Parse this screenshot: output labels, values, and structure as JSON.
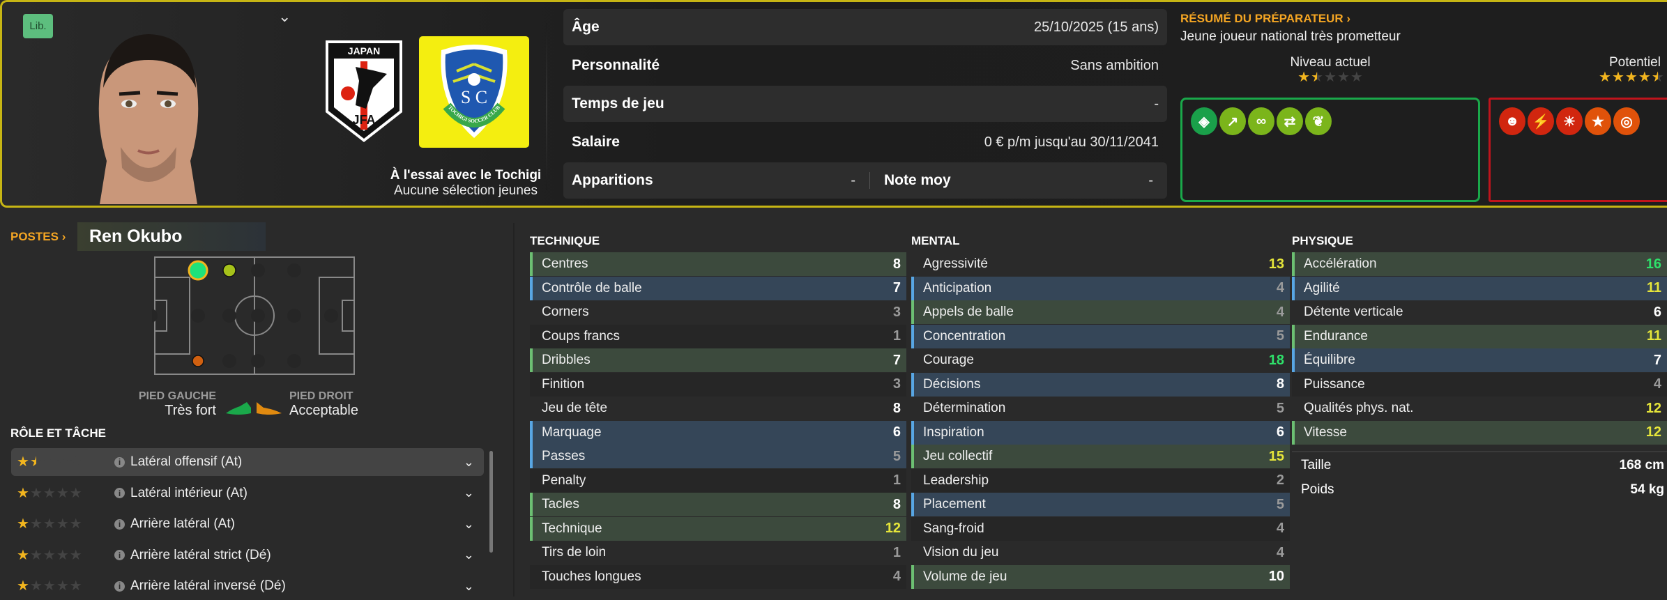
{
  "header": {
    "position_badge": "Lib.",
    "nation_badge_text": "JAPAN",
    "nation_badge_sub": "JFA",
    "club_badge_text": "TOCHIGI SOCCER CLUB",
    "club_status": "À l'essai avec le Tochigi",
    "youth_caps": "Aucune sélection jeunes",
    "info": [
      {
        "label": "Âge",
        "value": "25/10/2025 (15 ans)"
      },
      {
        "label": "Personnalité",
        "value": "Sans ambition"
      },
      {
        "label": "Temps de jeu",
        "value": "-"
      },
      {
        "label": "Salaire",
        "value": "0 € p/m jusqu'au 30/11/2041"
      }
    ],
    "apps_label": "Apparitions",
    "apps_value": "-",
    "rating_label": "Note moy",
    "rating_value": "-"
  },
  "coach_report": {
    "title": "RÉSUMÉ DU PRÉPARATEUR",
    "summary": "Jeune joueur national très prometteur",
    "current_label": "Niveau actuel",
    "current_stars": 1.5,
    "potential_label": "Potentiel",
    "potential_stars": 4.5,
    "strengths": [
      {
        "icon": "shield-stripes-icon",
        "glyph": "◈",
        "color": "#1aa04a"
      },
      {
        "icon": "trend-up-icon",
        "glyph": "↗",
        "color": "#7bb51b"
      },
      {
        "icon": "chain-link-icon",
        "glyph": "∞",
        "color": "#7bb51b"
      },
      {
        "icon": "pass-arrows-icon",
        "glyph": "⇄",
        "color": "#7bb51b"
      },
      {
        "icon": "growth-plant-icon",
        "glyph": "❦",
        "color": "#7bb51b"
      }
    ],
    "weaknesses": [
      {
        "icon": "head-mind-icon",
        "glyph": "☻",
        "color": "#d1260f"
      },
      {
        "icon": "broken-link-icon",
        "glyph": "⚡",
        "color": "#d1260f"
      },
      {
        "icon": "lightbulb-icon",
        "glyph": "☀",
        "color": "#d1260f"
      },
      {
        "icon": "star-icon",
        "glyph": "★",
        "color": "#e0520a"
      },
      {
        "icon": "target-icon",
        "glyph": "◎",
        "color": "#e0520a"
      }
    ]
  },
  "positions": {
    "title": "POSTES",
    "player_name": "Ren Okubo",
    "marker_colors": {
      "natural": "#1ee27a",
      "competent": "#a6c21a",
      "unconvincing": "#d06010",
      "ring": "#f2b51e"
    }
  },
  "feet": {
    "left_label": "PIED GAUCHE",
    "left_value": "Très fort",
    "left_color": "#1aa84a",
    "right_label": "PIED DROIT",
    "right_value": "Acceptable",
    "right_color": "#e08a10"
  },
  "roles": {
    "title": "RÔLE ET TÂCHE",
    "items": [
      {
        "label": "Latéral offensif (At)",
        "stars": 1.5
      },
      {
        "label": "Latéral intérieur (At)",
        "stars": 1
      },
      {
        "label": "Arrière latéral (At)",
        "stars": 1
      },
      {
        "label": "Arrière latéral strict (Dé)",
        "stars": 1
      },
      {
        "label": "Arrière latéral inversé (Dé)",
        "stars": 1
      }
    ]
  },
  "attributes": {
    "technique": {
      "title": "TECHNIQUE",
      "items": [
        {
          "label": "Centres",
          "value": 8,
          "hl": "g"
        },
        {
          "label": "Contrôle de balle",
          "value": 7,
          "hl": "b"
        },
        {
          "label": "Corners",
          "value": 3,
          "hl": "n"
        },
        {
          "label": "Coups francs",
          "value": 1,
          "hl": "n"
        },
        {
          "label": "Dribbles",
          "value": 7,
          "hl": "g"
        },
        {
          "label": "Finition",
          "value": 3,
          "hl": "n"
        },
        {
          "label": "Jeu de tête",
          "value": 8,
          "hl": "n"
        },
        {
          "label": "Marquage",
          "value": 6,
          "hl": "b"
        },
        {
          "label": "Passes",
          "value": 5,
          "hl": "b"
        },
        {
          "label": "Penalty",
          "value": 1,
          "hl": "n"
        },
        {
          "label": "Tacles",
          "value": 8,
          "hl": "g"
        },
        {
          "label": "Technique",
          "value": 12,
          "hl": "g"
        },
        {
          "label": "Tirs de loin",
          "value": 1,
          "hl": "n"
        },
        {
          "label": "Touches longues",
          "value": 4,
          "hl": "n"
        }
      ]
    },
    "mental": {
      "title": "MENTAL",
      "items": [
        {
          "label": "Agressivité",
          "value": 13,
          "hl": "n"
        },
        {
          "label": "Anticipation",
          "value": 4,
          "hl": "b"
        },
        {
          "label": "Appels de balle",
          "value": 4,
          "hl": "g"
        },
        {
          "label": "Concentration",
          "value": 5,
          "hl": "b"
        },
        {
          "label": "Courage",
          "value": 18,
          "hl": "n"
        },
        {
          "label": "Décisions",
          "value": 8,
          "hl": "b"
        },
        {
          "label": "Détermination",
          "value": 5,
          "hl": "n"
        },
        {
          "label": "Inspiration",
          "value": 6,
          "hl": "b"
        },
        {
          "label": "Jeu collectif",
          "value": 15,
          "hl": "g"
        },
        {
          "label": "Leadership",
          "value": 2,
          "hl": "n"
        },
        {
          "label": "Placement",
          "value": 5,
          "hl": "b"
        },
        {
          "label": "Sang-froid",
          "value": 4,
          "hl": "n"
        },
        {
          "label": "Vision du jeu",
          "value": 4,
          "hl": "n"
        },
        {
          "label": "Volume de jeu",
          "value": 10,
          "hl": "g"
        }
      ]
    },
    "physique": {
      "title": "PHYSIQUE",
      "items": [
        {
          "label": "Accélération",
          "value": 16,
          "hl": "g"
        },
        {
          "label": "Agilité",
          "value": 11,
          "hl": "b"
        },
        {
          "label": "Détente verticale",
          "value": 6,
          "hl": "n"
        },
        {
          "label": "Endurance",
          "value": 11,
          "hl": "g"
        },
        {
          "label": "Équilibre",
          "value": 7,
          "hl": "b"
        },
        {
          "label": "Puissance",
          "value": 4,
          "hl": "n"
        },
        {
          "label": "Qualités phys. nat.",
          "value": 12,
          "hl": "n"
        },
        {
          "label": "Vitesse",
          "value": 12,
          "hl": "g"
        }
      ]
    },
    "height_label": "Taille",
    "height_value": "168 cm",
    "weight_label": "Poids",
    "weight_value": "54 kg"
  },
  "colors": {
    "accent": "#f5a623",
    "header_border": "#c6b514",
    "value_low": "#9a9a9a",
    "value_mid": "#ffffff",
    "value_good": "#e6e63a",
    "value_great": "#2ee06a"
  }
}
